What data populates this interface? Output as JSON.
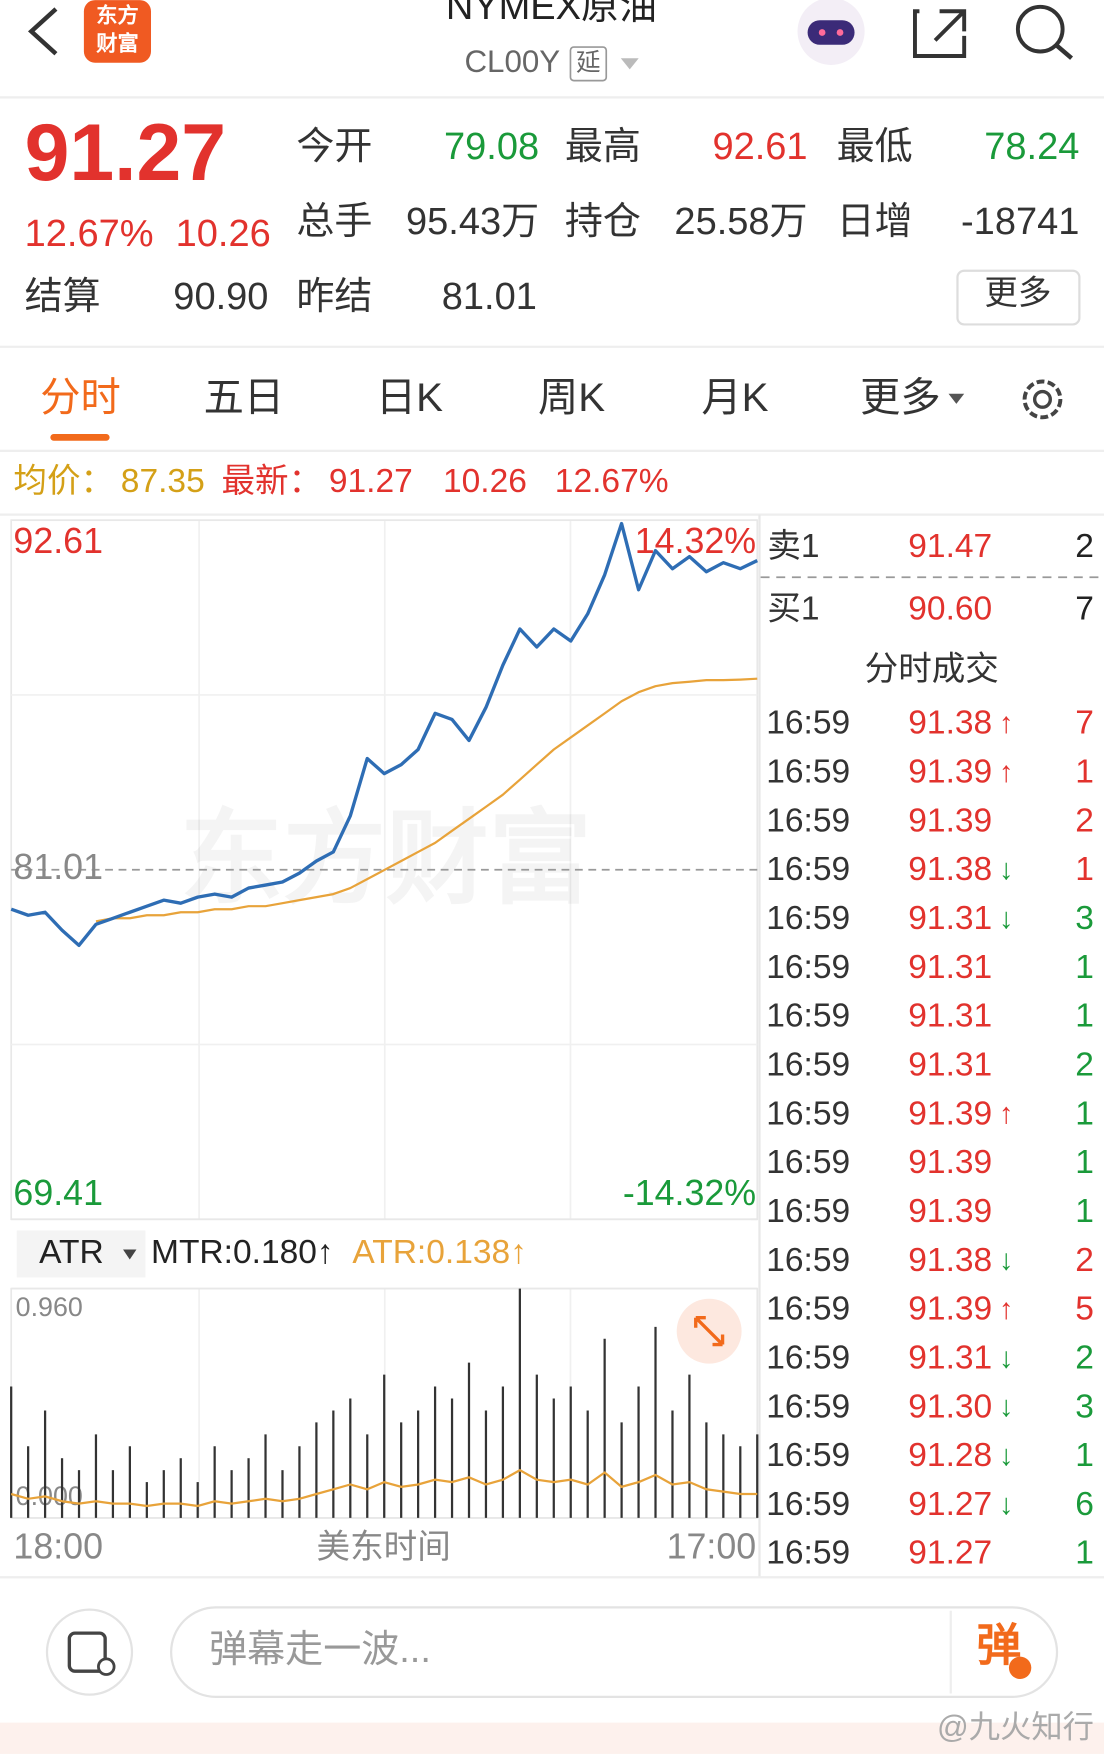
{
  "header": {
    "title": "NYMEX原油",
    "code": "CL00Y",
    "badge": "延",
    "logo": [
      "东方",
      "财富"
    ]
  },
  "quote": {
    "price": "91.27",
    "change_pct": "12.67%",
    "change": "10.26",
    "stats": [
      [
        {
          "label": "今开",
          "value": "79.08",
          "color": "#1a9a3a"
        },
        {
          "label": "最高",
          "value": "92.61",
          "color": "#e2322d"
        },
        {
          "label": "最低",
          "value": "78.24",
          "color": "#1a9a3a"
        }
      ],
      [
        {
          "label": "总手",
          "value": "95.43万",
          "color": "#333333"
        },
        {
          "label": "持仓",
          "value": "25.58万",
          "color": "#333333"
        },
        {
          "label": "日增",
          "value": "-18741",
          "color": "#333333"
        }
      ],
      [
        {
          "label": "结算",
          "value": "90.90",
          "color": "#333333"
        },
        {
          "label": "昨结",
          "value": "81.01",
          "color": "#333333"
        }
      ]
    ],
    "more": "更多"
  },
  "tabs": {
    "items": [
      "分时",
      "五日",
      "日K",
      "周K",
      "月K",
      "更多"
    ],
    "active": 0
  },
  "summary": {
    "avg_label": "均价：",
    "avg": "87.35",
    "last_label": "最新：",
    "last": "91.27",
    "change": "10.26",
    "pct": "12.67%"
  },
  "chart_data": [
    {
      "type": "line",
      "watermark": "东方财富",
      "series": [
        {
          "color": "#2e6db4",
          "values": [
            79.7,
            79.5,
            79.6,
            79.0,
            78.5,
            79.2,
            79.4,
            79.6,
            79.8,
            80.0,
            79.9,
            80.1,
            80.2,
            80.1,
            80.4,
            80.5,
            80.6,
            80.9,
            81.3,
            81.6,
            82.8,
            84.7,
            84.2,
            84.5,
            85.0,
            86.2,
            86.0,
            85.3,
            86.4,
            87.8,
            89.0,
            88.4,
            89.0,
            88.6,
            89.5,
            90.8,
            92.5,
            90.3,
            91.6,
            91.0,
            91.4,
            90.9,
            91.2,
            91.0,
            91.27
          ]
        },
        {
          "color": "#e8a33a",
          "values": [
            null,
            null,
            null,
            null,
            null,
            79.3,
            79.4,
            79.4,
            79.5,
            79.5,
            79.6,
            79.6,
            79.7,
            79.7,
            79.8,
            79.8,
            79.9,
            80.0,
            80.1,
            80.2,
            80.4,
            80.7,
            81.0,
            81.3,
            81.6,
            81.9,
            82.3,
            82.7,
            83.1,
            83.5,
            84.0,
            84.5,
            85.0,
            85.4,
            85.8,
            86.2,
            86.6,
            86.9,
            87.1,
            87.2,
            87.25,
            87.3,
            87.3,
            87.32,
            87.35
          ]
        }
      ],
      "ylim": [
        69.41,
        92.61
      ],
      "yticks": [
        92.61,
        81.01,
        69.41
      ],
      "y2lim": [
        -14.32,
        14.32
      ],
      "y2ticks": [
        {
          "value": 14.32,
          "label": "14.32%"
        },
        {
          "value": -14.32,
          "label": "-14.32%"
        }
      ]
    },
    {
      "type": "bar",
      "selector": "ATR",
      "readouts": [
        {
          "text": "MTR:0.180↑",
          "color": "#222222"
        },
        {
          "text": "ATR:0.138↑",
          "color": "#e8a33a"
        }
      ],
      "series": [
        {
          "color": "#333333",
          "values": [
            0.55,
            0.3,
            0.45,
            0.25,
            0.2,
            0.35,
            0.2,
            0.3,
            0.15,
            0.2,
            0.25,
            0.15,
            0.3,
            0.2,
            0.25,
            0.35,
            0.2,
            0.3,
            0.4,
            0.45,
            0.5,
            0.35,
            0.6,
            0.4,
            0.45,
            0.55,
            0.5,
            0.65,
            0.45,
            0.55,
            0.96,
            0.6,
            0.5,
            0.55,
            0.45,
            0.75,
            0.4,
            0.55,
            0.8,
            0.45,
            0.6,
            0.4,
            0.35,
            0.3,
            0.35
          ]
        },
        {
          "color": "#e8a33a",
          "values": [
            0.1,
            0.08,
            0.09,
            0.07,
            0.06,
            0.07,
            0.06,
            0.06,
            0.05,
            0.06,
            0.06,
            0.05,
            0.07,
            0.06,
            0.07,
            0.08,
            0.07,
            0.08,
            0.1,
            0.12,
            0.14,
            0.12,
            0.15,
            0.13,
            0.14,
            0.16,
            0.15,
            0.17,
            0.14,
            0.16,
            0.2,
            0.16,
            0.15,
            0.16,
            0.14,
            0.19,
            0.13,
            0.15,
            0.18,
            0.14,
            0.15,
            0.12,
            0.11,
            0.1,
            0.1
          ]
        }
      ],
      "ylim": [
        0,
        0.96
      ],
      "yticks": [
        {
          "value": 0.96,
          "label": "0.960"
        },
        {
          "value": 0,
          "label": "0.000"
        }
      ],
      "xtick_labels": [
        "18:00",
        "17:00"
      ],
      "xlabel": "美东时间"
    }
  ],
  "order_book": [
    {
      "side": "卖1",
      "price": "91.47",
      "volume": 2
    },
    {
      "side": "买1",
      "price": "90.60",
      "volume": 7
    }
  ],
  "trades_title": "分时成交",
  "trades": [
    {
      "time": "16:59",
      "price": "91.38",
      "arrow": "↑",
      "arrow_color": "#e2322d",
      "volume": 7,
      "color": "#e2322d"
    },
    {
      "time": "16:59",
      "price": "91.39",
      "arrow": "↑",
      "arrow_color": "#e2322d",
      "volume": 1,
      "color": "#e2322d"
    },
    {
      "time": "16:59",
      "price": "91.39",
      "volume": 2,
      "color": "#e2322d"
    },
    {
      "time": "16:59",
      "price": "91.38",
      "arrow": "↓",
      "arrow_color": "#1a9a3a",
      "volume": 1,
      "color": "#e2322d"
    },
    {
      "time": "16:59",
      "price": "91.31",
      "arrow": "↓",
      "arrow_color": "#1a9a3a",
      "volume": 3,
      "color": "#1a9a3a"
    },
    {
      "time": "16:59",
      "price": "91.31",
      "volume": 1,
      "color": "#1a9a3a"
    },
    {
      "time": "16:59",
      "price": "91.31",
      "volume": 1,
      "color": "#1a9a3a"
    },
    {
      "time": "16:59",
      "price": "91.31",
      "volume": 2,
      "color": "#1a9a3a"
    },
    {
      "time": "16:59",
      "price": "91.39",
      "arrow": "↑",
      "arrow_color": "#e2322d",
      "volume": 1,
      "color": "#1a9a3a"
    },
    {
      "time": "16:59",
      "price": "91.39",
      "volume": 1,
      "color": "#1a9a3a"
    },
    {
      "time": "16:59",
      "price": "91.39",
      "volume": 1,
      "color": "#1a9a3a"
    },
    {
      "time": "16:59",
      "price": "91.38",
      "arrow": "↓",
      "arrow_color": "#1a9a3a",
      "volume": 2,
      "color": "#e2322d"
    },
    {
      "time": "16:59",
      "price": "91.39",
      "arrow": "↑",
      "arrow_color": "#e2322d",
      "volume": 5,
      "color": "#e2322d"
    },
    {
      "time": "16:59",
      "price": "91.31",
      "arrow": "↓",
      "arrow_color": "#1a9a3a",
      "volume": 2,
      "color": "#1a9a3a"
    },
    {
      "time": "16:59",
      "price": "91.30",
      "arrow": "↓",
      "arrow_color": "#1a9a3a",
      "volume": 3,
      "color": "#1a9a3a"
    },
    {
      "time": "16:59",
      "price": "91.28",
      "arrow": "↓",
      "arrow_color": "#1a9a3a",
      "volume": 1,
      "color": "#1a9a3a"
    },
    {
      "time": "16:59",
      "price": "91.27",
      "arrow": "↓",
      "arrow_color": "#1a9a3a",
      "volume": 6,
      "color": "#1a9a3a"
    },
    {
      "time": "16:59",
      "price": "91.27",
      "volume": 1,
      "color": "#1a9a3a"
    }
  ],
  "comment": {
    "placeholder": "弹幕走一波...",
    "button": "弹"
  },
  "watermark": "@九火知行"
}
